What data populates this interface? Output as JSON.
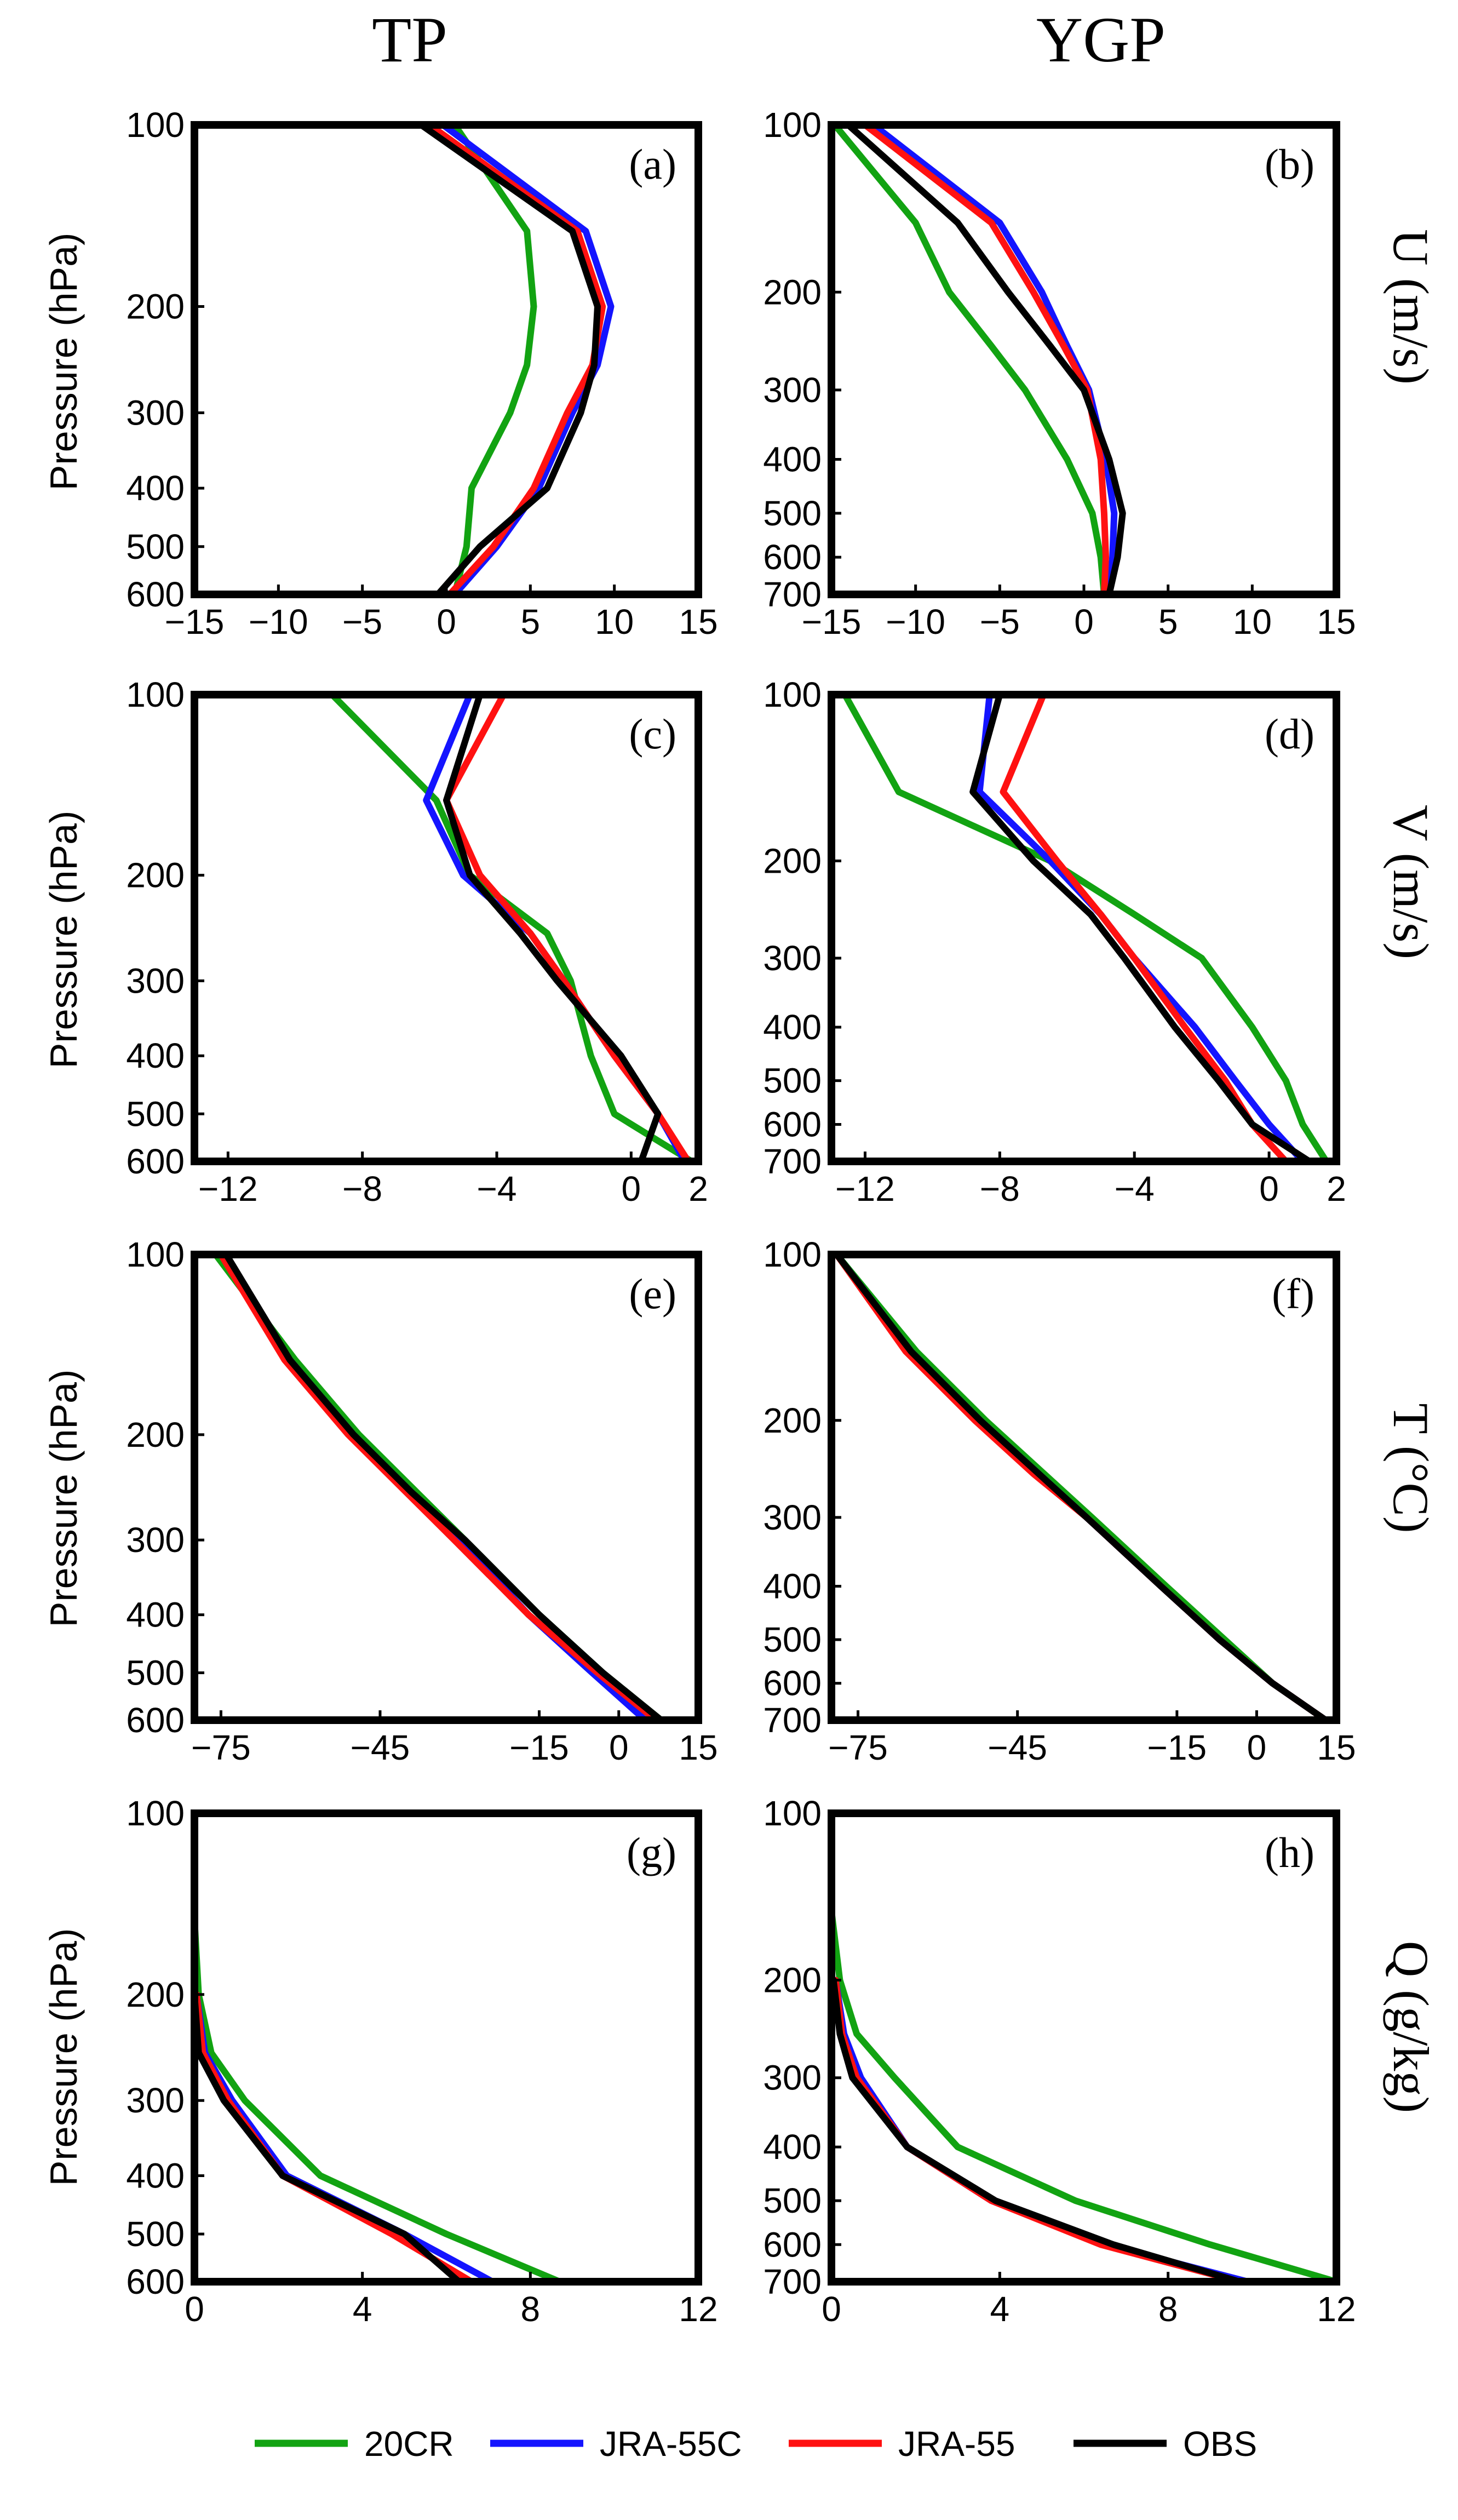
{
  "figure": {
    "column_titles": [
      "TP",
      "YGP"
    ],
    "row_labels": [
      "U (m/s)",
      "V (m/s)",
      "T (°C)",
      "Q (g/kg)"
    ],
    "ylabel": "Pressure (hPa)"
  },
  "legend": [
    {
      "name": "20CR",
      "color": "#12a312"
    },
    {
      "name": "JRA-55C",
      "color": "#1414ff"
    },
    {
      "name": "JRA-55",
      "color": "#ff1111"
    },
    {
      "name": "OBS",
      "color": "#000000"
    }
  ],
  "chart_data": [
    {
      "type": "line",
      "panel": "(a)",
      "title": "U (m/s)",
      "region": "TP",
      "ylabel": "Pressure (hPa)",
      "xlim": [
        -15,
        15
      ],
      "ylim": [
        600,
        100
      ],
      "xticks": [
        -15,
        -10,
        -5,
        0,
        5,
        10,
        15
      ],
      "yticks": [
        100,
        200,
        300,
        400,
        500,
        600
      ],
      "pressure": [
        100,
        150,
        200,
        250,
        300,
        400,
        500,
        600
      ],
      "series": [
        {
          "name": "20CR",
          "color": "#12a312",
          "values": [
            0.5,
            4.8,
            5.2,
            4.8,
            3.8,
            1.5,
            1.2,
            0.5
          ]
        },
        {
          "name": "JRA-55C",
          "color": "#1414ff",
          "values": [
            -0.2,
            8.3,
            9.8,
            9.0,
            7.5,
            5.5,
            3.0,
            0.5
          ]
        },
        {
          "name": "JRA-55",
          "color": "#ff1111",
          "values": [
            -1.0,
            7.8,
            9.3,
            8.7,
            7.2,
            5.2,
            2.8,
            0.2
          ]
        },
        {
          "name": "OBS",
          "color": "#000000",
          "values": [
            -1.5,
            7.5,
            9.0,
            8.8,
            8.0,
            6.0,
            2.0,
            -0.5
          ]
        }
      ]
    },
    {
      "type": "line",
      "panel": "(b)",
      "title": "U (m/s)",
      "region": "YGP",
      "ylabel": "",
      "xlim": [
        -15,
        15
      ],
      "ylim": [
        700,
        100
      ],
      "xticks": [
        -15,
        -10,
        -5,
        0,
        5,
        10,
        15
      ],
      "yticks": [
        100,
        200,
        300,
        400,
        500,
        600,
        700
      ],
      "pressure": [
        100,
        150,
        200,
        250,
        300,
        400,
        500,
        600,
        700
      ],
      "series": [
        {
          "name": "20CR",
          "color": "#12a312",
          "values": [
            -14.8,
            -10.0,
            -8.0,
            -5.5,
            -3.5,
            -1.0,
            0.5,
            1.0,
            1.2
          ]
        },
        {
          "name": "JRA-55C",
          "color": "#1414ff",
          "values": [
            -12.5,
            -5.0,
            -2.5,
            -1.0,
            0.3,
            1.3,
            1.8,
            1.7,
            1.5
          ]
        },
        {
          "name": "JRA-55",
          "color": "#ff1111",
          "values": [
            -13.0,
            -5.5,
            -3.0,
            -1.2,
            0.2,
            1.0,
            1.2,
            1.3,
            1.2
          ]
        },
        {
          "name": "OBS",
          "color": "#000000",
          "values": [
            -14.0,
            -7.5,
            -4.5,
            -2.0,
            0.0,
            1.5,
            2.3,
            2.0,
            1.5
          ]
        }
      ]
    },
    {
      "type": "line",
      "panel": "(c)",
      "title": "V (m/s)",
      "region": "TP",
      "ylabel": "Pressure (hPa)",
      "xlim": [
        -13,
        2
      ],
      "ylim": [
        600,
        100
      ],
      "xticks": [
        -12,
        -8,
        -4,
        0,
        2
      ],
      "yticks": [
        100,
        200,
        300,
        400,
        500,
        600
      ],
      "pressure": [
        100,
        150,
        200,
        250,
        300,
        400,
        500,
        600
      ],
      "series": [
        {
          "name": "20CR",
          "color": "#12a312",
          "values": [
            -8.9,
            -5.8,
            -4.8,
            -2.5,
            -1.8,
            -1.2,
            -0.5,
            1.8
          ]
        },
        {
          "name": "JRA-55C",
          "color": "#1414ff",
          "values": [
            -4.8,
            -6.1,
            -5.0,
            -3.0,
            -2.0,
            -0.5,
            0.8,
            1.6
          ]
        },
        {
          "name": "JRA-55",
          "color": "#ff1111",
          "values": [
            -3.8,
            -5.5,
            -4.5,
            -3.0,
            -2.0,
            -0.5,
            0.8,
            1.7
          ]
        },
        {
          "name": "OBS",
          "color": "#000000",
          "values": [
            -4.5,
            -5.5,
            -4.8,
            -3.3,
            -2.2,
            -0.3,
            0.8,
            0.3
          ]
        }
      ]
    },
    {
      "type": "line",
      "panel": "(d)",
      "title": "V (m/s)",
      "region": "YGP",
      "ylabel": "",
      "xlim": [
        -13,
        2
      ],
      "ylim": [
        700,
        100
      ],
      "xticks": [
        -12,
        -8,
        -4,
        0,
        2
      ],
      "yticks": [
        100,
        200,
        300,
        400,
        500,
        600,
        700
      ],
      "pressure": [
        100,
        150,
        200,
        250,
        300,
        400,
        500,
        600,
        700
      ],
      "series": [
        {
          "name": "20CR",
          "color": "#12a312",
          "values": [
            -12.6,
            -11.0,
            -6.5,
            -4.0,
            -2.0,
            -0.5,
            0.5,
            1.0,
            1.7
          ]
        },
        {
          "name": "JRA-55C",
          "color": "#1414ff",
          "values": [
            -8.3,
            -8.6,
            -6.5,
            -5.0,
            -4.0,
            -2.2,
            -1.0,
            0.0,
            1.0
          ]
        },
        {
          "name": "JRA-55",
          "color": "#ff1111",
          "values": [
            -6.7,
            -7.9,
            -6.3,
            -5.0,
            -4.0,
            -2.5,
            -1.3,
            -0.5,
            0.5
          ]
        },
        {
          "name": "OBS",
          "color": "#000000",
          "values": [
            -8.0,
            -8.8,
            -7.0,
            -5.3,
            -4.3,
            -2.8,
            -1.5,
            -0.5,
            1.2
          ]
        }
      ]
    },
    {
      "type": "line",
      "panel": "(e)",
      "title": "T (°C)",
      "region": "TP",
      "ylabel": "Pressure (hPa)",
      "xlim": [
        -80,
        15
      ],
      "ylim": [
        600,
        100
      ],
      "xticks": [
        -75,
        -45,
        -15,
        0,
        15
      ],
      "yticks": [
        100,
        200,
        300,
        400,
        500,
        600
      ],
      "pressure": [
        100,
        150,
        200,
        250,
        300,
        400,
        500,
        600
      ],
      "series": [
        {
          "name": "20CR",
          "color": "#12a312",
          "values": [
            -76,
            -61,
            -49,
            -38,
            -29,
            -15,
            -3,
            8
          ]
        },
        {
          "name": "JRA-55C",
          "color": "#1414ff",
          "values": [
            -75,
            -62,
            -50,
            -39,
            -30,
            -17,
            -5,
            5
          ]
        },
        {
          "name": "JRA-55",
          "color": "#ff1111",
          "values": [
            -75,
            -63,
            -51,
            -40,
            -31,
            -17,
            -4,
            7
          ]
        },
        {
          "name": "OBS",
          "color": "#000000",
          "values": [
            -74,
            -62,
            -50,
            -39,
            -29,
            -15,
            -3,
            8
          ]
        }
      ]
    },
    {
      "type": "line",
      "panel": "(f)",
      "title": "T (°C)",
      "region": "YGP",
      "ylabel": "",
      "xlim": [
        -80,
        15
      ],
      "ylim": [
        700,
        100
      ],
      "xticks": [
        -75,
        -45,
        -15,
        0,
        15
      ],
      "yticks": [
        100,
        200,
        300,
        400,
        500,
        600,
        700
      ],
      "pressure": [
        100,
        150,
        200,
        250,
        300,
        400,
        500,
        600,
        700
      ],
      "series": [
        {
          "name": "20CR",
          "color": "#12a312",
          "values": [
            -79,
            -64,
            -51,
            -40,
            -31,
            -17,
            -6,
            3,
            13
          ]
        },
        {
          "name": "JRA-55C",
          "color": "#1414ff",
          "values": [
            -79,
            -65,
            -52,
            -41,
            -32,
            -18,
            -7,
            3,
            13
          ]
        },
        {
          "name": "JRA-55",
          "color": "#ff1111",
          "values": [
            -79,
            -66,
            -53,
            -42,
            -32,
            -18,
            -7,
            3,
            13
          ]
        },
        {
          "name": "OBS",
          "color": "#000000",
          "values": [
            -79,
            -65,
            -52,
            -41,
            -32,
            -18,
            -7,
            3,
            13
          ]
        }
      ]
    },
    {
      "type": "line",
      "panel": "(g)",
      "title": "Q (g/kg)",
      "region": "TP",
      "ylabel": "Pressure (hPa)",
      "xlim": [
        0,
        12
      ],
      "ylim": [
        600,
        100
      ],
      "xticks": [
        0,
        4,
        8,
        12
      ],
      "yticks": [
        100,
        200,
        300,
        400,
        500,
        600
      ],
      "pressure": [
        150,
        200,
        250,
        300,
        400,
        500,
        600
      ],
      "series": [
        {
          "name": "20CR",
          "color": "#12a312",
          "values": [
            0.0,
            0.1,
            0.4,
            1.2,
            3.0,
            6.0,
            8.7
          ]
        },
        {
          "name": "JRA-55C",
          "color": "#1414ff",
          "values": [
            null,
            0.05,
            0.25,
            0.9,
            2.2,
            5.0,
            7.1
          ]
        },
        {
          "name": "JRA-55",
          "color": "#ff1111",
          "values": [
            null,
            0.05,
            0.2,
            0.8,
            2.1,
            4.7,
            6.6
          ]
        },
        {
          "name": "OBS",
          "color": "#000000",
          "values": [
            null,
            0.0,
            0.1,
            0.7,
            2.1,
            5.0,
            6.3
          ]
        }
      ]
    },
    {
      "type": "line",
      "panel": "(h)",
      "title": "Q (g/kg)",
      "region": "YGP",
      "ylabel": "",
      "xlim": [
        0,
        12
      ],
      "ylim": [
        700,
        100
      ],
      "xticks": [
        0,
        4,
        8,
        12
      ],
      "yticks": [
        100,
        200,
        300,
        400,
        500,
        600,
        700
      ],
      "pressure": [
        150,
        200,
        250,
        300,
        400,
        500,
        600,
        700
      ],
      "series": [
        {
          "name": "20CR",
          "color": "#12a312",
          "values": [
            0.0,
            0.2,
            0.6,
            1.5,
            3.0,
            5.8,
            9.0,
            12.0
          ]
        },
        {
          "name": "JRA-55C",
          "color": "#1414ff",
          "values": [
            null,
            0.1,
            0.3,
            0.7,
            1.8,
            3.8,
            6.5,
            9.9
          ]
        },
        {
          "name": "JRA-55",
          "color": "#ff1111",
          "values": [
            null,
            0.1,
            0.25,
            0.6,
            1.8,
            3.8,
            6.4,
            9.7
          ]
        },
        {
          "name": "OBS",
          "color": "#000000",
          "values": [
            null,
            0.05,
            0.2,
            0.5,
            1.8,
            3.9,
            6.7,
            9.7
          ]
        }
      ]
    }
  ]
}
